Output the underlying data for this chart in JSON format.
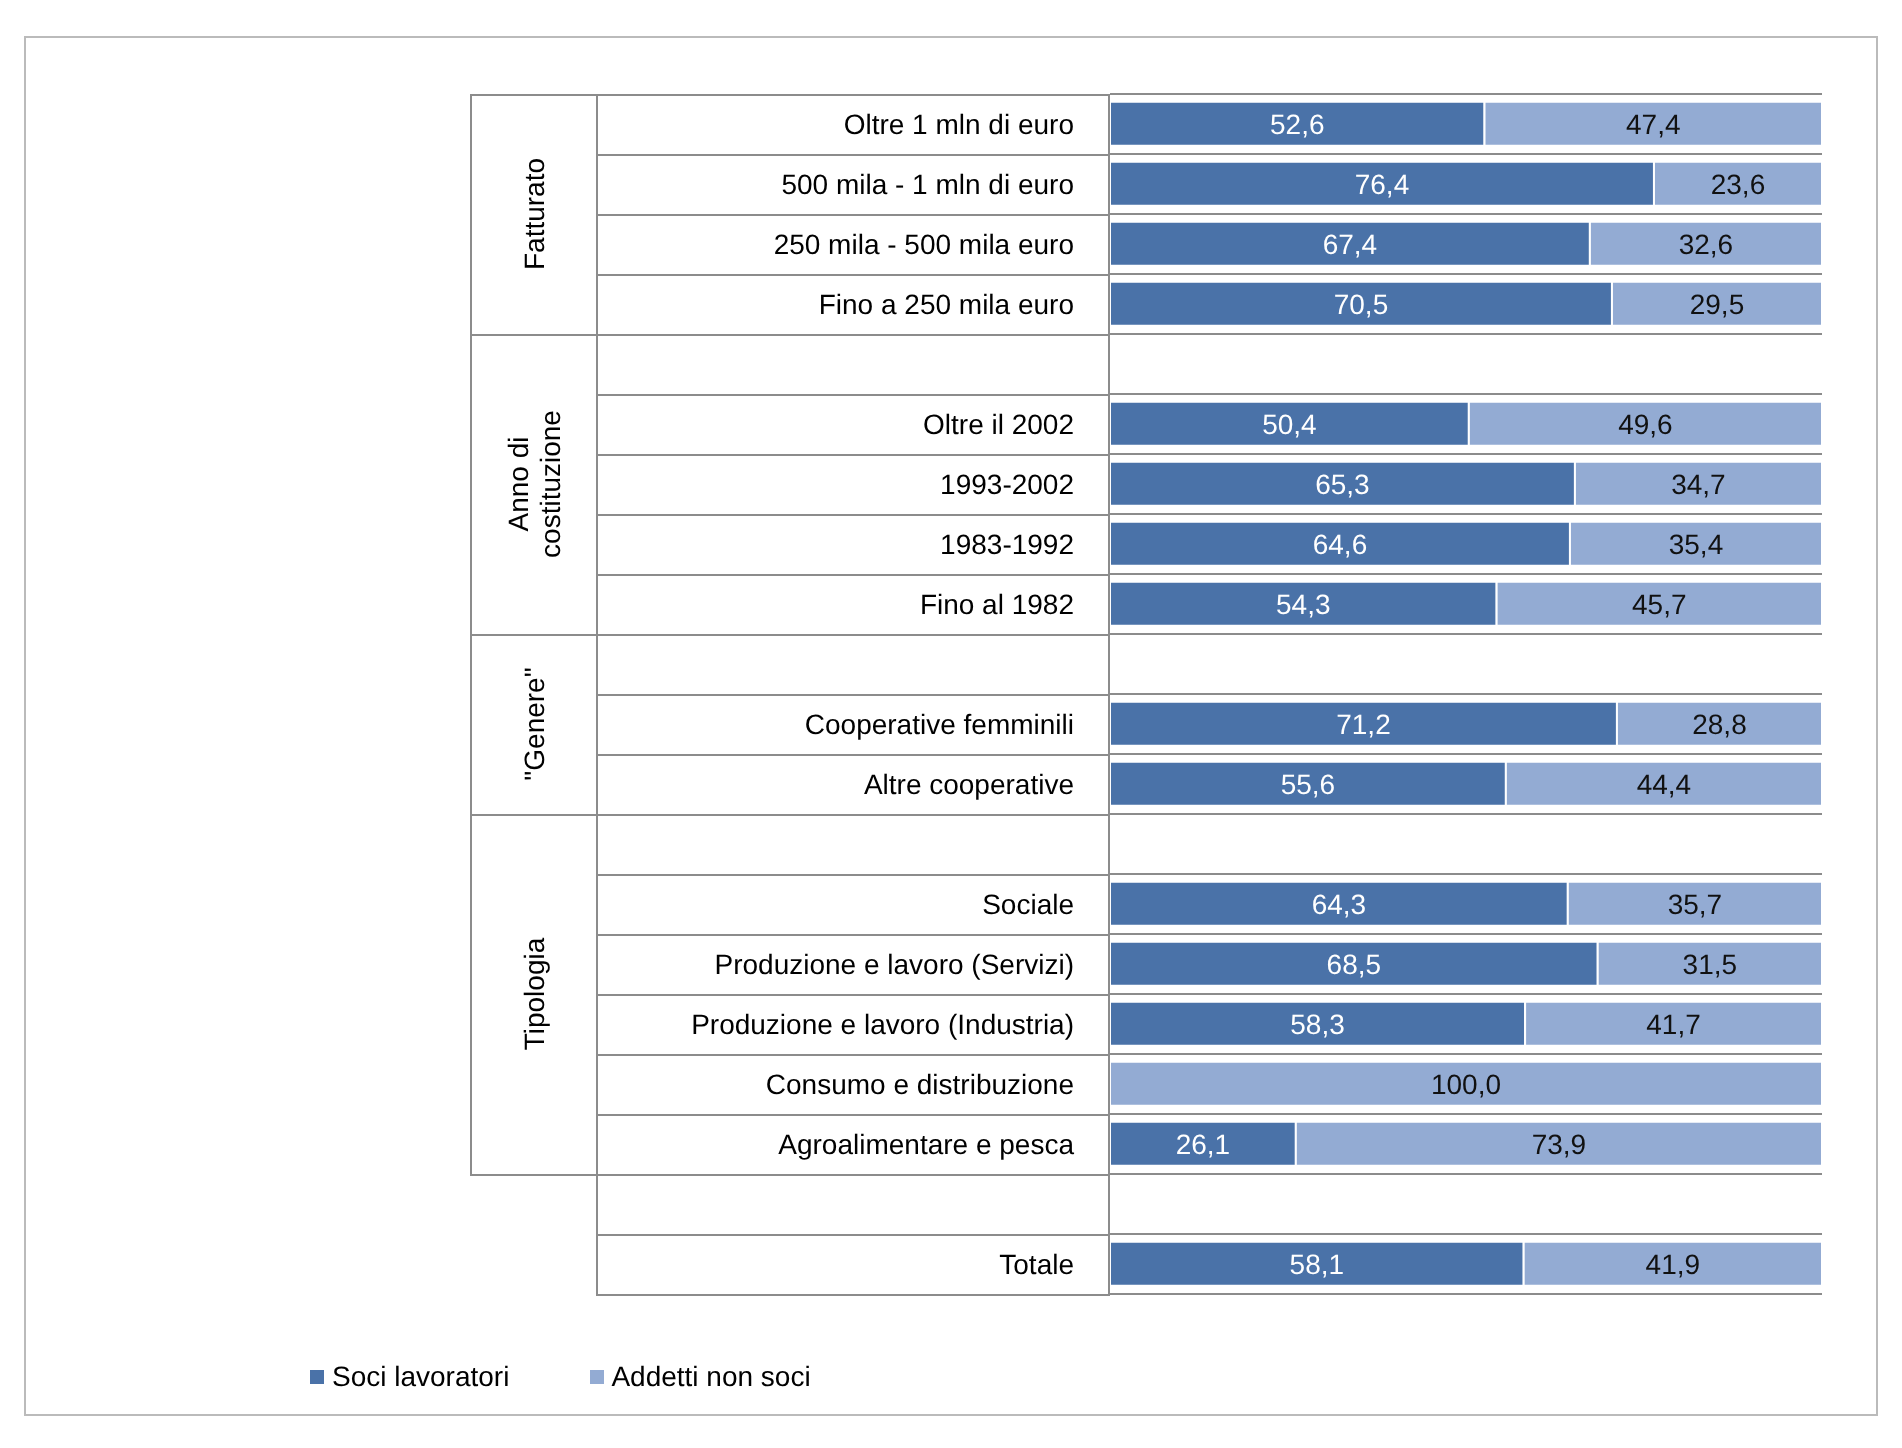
{
  "chart_data": {
    "type": "bar",
    "orientation": "horizontal",
    "stacked": true,
    "categories": [
      "Oltre 1 mln di euro",
      "500 mila - 1 mln di euro",
      "250 mila - 500 mila euro",
      "Fino a 250 mila euro",
      null,
      "Oltre il 2002",
      "1993-2002",
      "1983-1992",
      "Fino al 1982",
      null,
      "Cooperative femminili",
      "Altre cooperative",
      null,
      "Sociale",
      "Produzione e lavoro (Servizi)",
      "Produzione e lavoro (Industria)",
      "Consumo e distribuzione",
      "Agroalimentare e pesca",
      null,
      "Totale"
    ],
    "series": [
      {
        "name": "Soci lavoratori",
        "color": "#4a72a8",
        "values": [
          52.6,
          76.4,
          67.4,
          70.5,
          null,
          50.4,
          65.3,
          64.6,
          54.3,
          null,
          71.2,
          55.6,
          null,
          64.3,
          68.5,
          58.3,
          0,
          26.1,
          null,
          58.1
        ],
        "value_labels": [
          "52,6",
          "76,4",
          "67,4",
          "70,5",
          null,
          "50,4",
          "65,3",
          "64,6",
          "54,3",
          null,
          "71,2",
          "55,6",
          null,
          "64,3",
          "68,5",
          "58,3",
          null,
          "26,1",
          null,
          "58,1"
        ]
      },
      {
        "name": "Addetti non soci",
        "color": "#93abd3",
        "values": [
          47.4,
          23.6,
          32.6,
          29.5,
          null,
          49.6,
          34.7,
          35.4,
          45.7,
          null,
          28.8,
          44.4,
          null,
          35.7,
          31.5,
          41.7,
          100,
          73.9,
          null,
          41.9
        ],
        "value_labels": [
          "47,4",
          "23,6",
          "32,6",
          "29,5",
          null,
          "49,6",
          "34,7",
          "35,4",
          "45,7",
          null,
          "28,8",
          "44,4",
          null,
          "35,7",
          "31,5",
          "41,7",
          "100,0",
          "73,9",
          null,
          "41,9"
        ]
      }
    ],
    "xlim": [
      0,
      100
    ],
    "tick_labels": "y",
    "grid": "y",
    "legend": "bottom left",
    "annotations": [
      "Fatturato",
      "Anno di costituzione",
      "\"Genere\"",
      "Tipologia"
    ]
  }
}
